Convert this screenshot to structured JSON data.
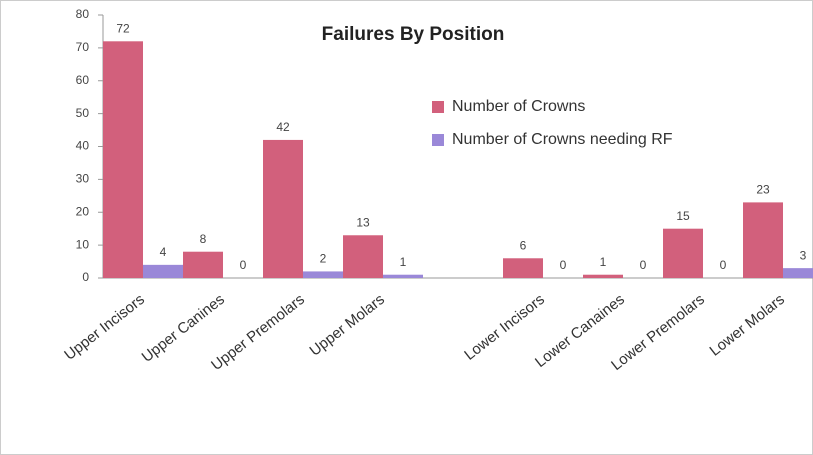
{
  "chart_data": {
    "type": "bar",
    "title": "Failures By Position",
    "categories": [
      "Upper Incisors",
      "Upper Canines",
      "Upper Premolars",
      "Upper Molars",
      null,
      "Lower Incisors",
      "Lower Canaines",
      "Lower Premolars",
      "Lower Molars"
    ],
    "series": [
      {
        "name": "Number of Crowns",
        "color": "#d2607c",
        "values": [
          72,
          8,
          42,
          13,
          null,
          6,
          1,
          15,
          23
        ]
      },
      {
        "name": "Number of Crowns needing RF",
        "color": "#9a88d8",
        "values": [
          4,
          0,
          2,
          1,
          null,
          0,
          0,
          0,
          3
        ]
      }
    ],
    "ylim": [
      0,
      80
    ],
    "yticks": [
      0,
      10,
      20,
      30,
      40,
      50,
      60,
      70,
      80
    ],
    "grid": false,
    "legend": "upper-right"
  }
}
